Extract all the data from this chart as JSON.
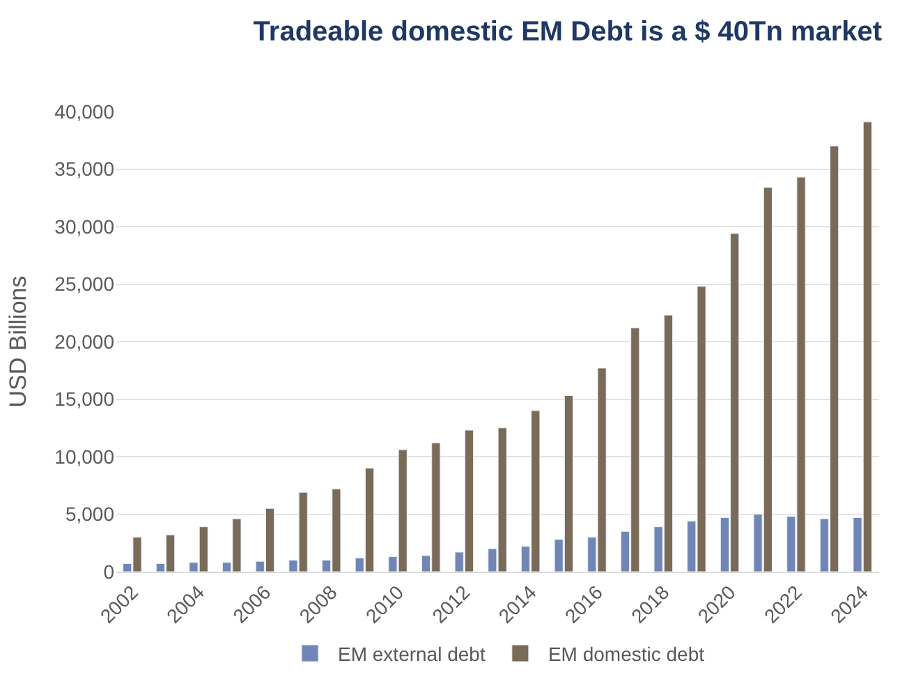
{
  "chart_data": {
    "type": "bar",
    "title": "Tradeable domestic EM Debt is a $ 40Tn market",
    "ylabel": "USD Billions",
    "categories": [
      "2002",
      null,
      "2004",
      null,
      "2006",
      null,
      "2008",
      null,
      "2010",
      null,
      "2012",
      null,
      "2014",
      null,
      "2016",
      null,
      "2018",
      null,
      "2020",
      null,
      "2022",
      null,
      "2024"
    ],
    "series": [
      {
        "name": "EM external debt",
        "color": "#7186b5",
        "values": [
          700,
          700,
          800,
          800,
          900,
          1000,
          1000,
          1200,
          1300,
          1400,
          1700,
          2000,
          2200,
          2800,
          3000,
          3500,
          3900,
          4400,
          4700,
          5000,
          4800,
          4600,
          4700
        ]
      },
      {
        "name": "EM domestic debt",
        "color": "#7a6a58",
        "values": [
          3000,
          3200,
          3900,
          4600,
          5500,
          6900,
          7200,
          9000,
          10600,
          11200,
          12300,
          12500,
          14000,
          15300,
          17700,
          21200,
          22300,
          24800,
          29400,
          33400,
          34300,
          37000,
          39100
        ]
      }
    ],
    "ylim": [
      0,
      40000
    ],
    "yticks": [
      {
        "value": 0,
        "label": "0"
      },
      {
        "value": 5000,
        "label": "5,000"
      },
      {
        "value": 10000,
        "label": "10,000"
      },
      {
        "value": 15000,
        "label": "15,000"
      },
      {
        "value": 20000,
        "label": "20,000"
      },
      {
        "value": 25000,
        "label": "25,000"
      },
      {
        "value": 30000,
        "label": "30,000"
      },
      {
        "value": 35000,
        "label": "35,000"
      },
      {
        "value": 40000,
        "label": "40,000"
      }
    ],
    "grid": "y",
    "legend": "bottom"
  }
}
